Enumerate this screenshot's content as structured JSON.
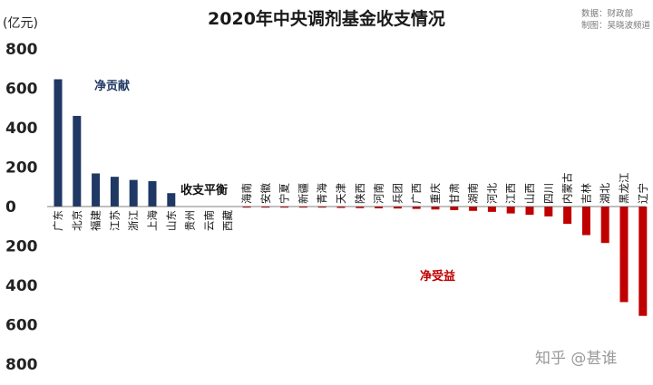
{
  "title": "2020年中央调剂基金收支情况",
  "source_lines": [
    "数据：财政部",
    "制图：吴晓波频道"
  ],
  "unit_label": "(亿元)",
  "watermark": "知乎 @甚谁",
  "colors": {
    "positive": "#1f3864",
    "negative": "#c00000",
    "zero_axis": "#555555"
  },
  "chart_data": {
    "type": "bar",
    "ylabel": "(亿元)",
    "ylim": [
      -800,
      800
    ],
    "yticks": [
      800,
      600,
      400,
      200,
      0,
      200,
      400,
      600,
      800
    ],
    "grid": false,
    "categories": [
      "广东",
      "北京",
      "福建",
      "江苏",
      "浙江",
      "上海",
      "山东",
      "贵州",
      "云南",
      "西藏",
      "海南",
      "安徽",
      "宁夏",
      "新疆",
      "青海",
      "天津",
      "陕西",
      "河南",
      "兵团",
      "广西",
      "重庆",
      "甘肃",
      "湖南",
      "河北",
      "江西",
      "山西",
      "四川",
      "内蒙古",
      "吉林",
      "湖北",
      "黑龙江",
      "辽宁"
    ],
    "values": [
      646,
      460,
      168,
      151,
      135,
      129,
      68,
      0,
      0,
      0,
      -1,
      -2,
      -3,
      -4,
      -5,
      -7,
      -8,
      -9,
      -10,
      -12,
      -15,
      -18,
      -22,
      -27,
      -35,
      -42,
      -50,
      -88,
      -145,
      -185,
      -485,
      -555
    ],
    "annotations": [
      {
        "text": "净贡献",
        "group": "positive"
      },
      {
        "text": "收支平衡",
        "group": "zero"
      },
      {
        "text": "净受益",
        "group": "negative"
      }
    ]
  }
}
